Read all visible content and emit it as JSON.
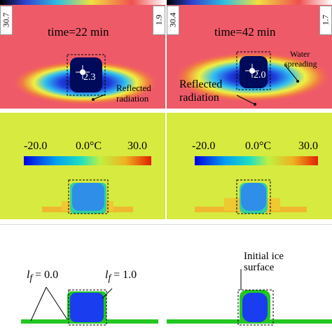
{
  "thermal_left": {
    "scale_max": "30.7",
    "scale_min": "1.9",
    "time_label": "time=22 min",
    "spot_value": "2.3",
    "annotation_reflected_line1": "Reflected",
    "annotation_reflected_line2": "radiation"
  },
  "thermal_right": {
    "scale_max": "30.4",
    "scale_min": "1.7",
    "time_label": "time=42 min",
    "spot_value": "2.0",
    "annotation_water_line1": "Water",
    "annotation_water_line2": "spreading",
    "annotation_reflected_line1": "Reflected",
    "annotation_reflected_line2": "radiation"
  },
  "sim_left": {
    "cb_min": "-20.0",
    "cb_mid": "0.0°C",
    "cb_max": "30.0"
  },
  "sim_right": {
    "cb_min": "-20.0",
    "cb_mid": "0.0°C",
    "cb_max": "30.0"
  },
  "phase_left": {
    "lf_symbol": "l",
    "lf_sub": "f",
    "lf_zero": " = 0.0",
    "lf_one": " = 1.0"
  },
  "phase_right": {
    "initial_line1": "Initial ice",
    "initial_line2": "surface"
  },
  "colors": {
    "thermal_bg": "#ef5a68",
    "sim_bg": "#d6ea3f",
    "ice_blue": "#1a3df0",
    "water_green": "#22c722"
  }
}
